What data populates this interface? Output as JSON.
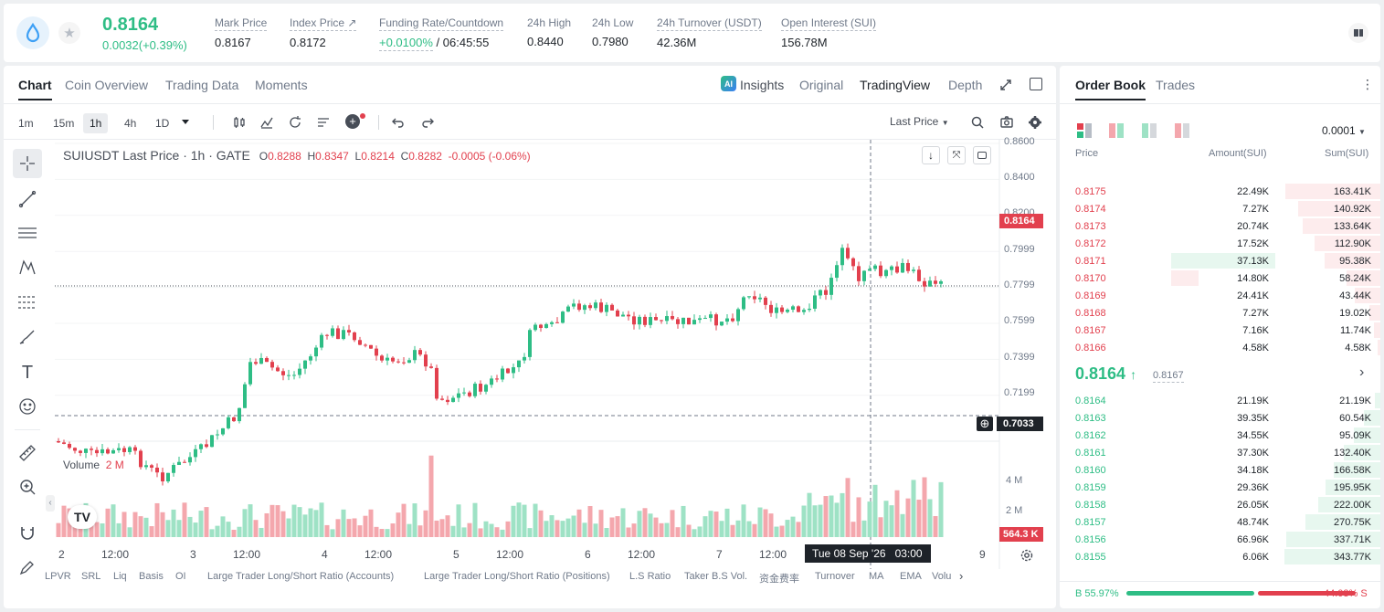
{
  "header": {
    "price": "0.8164",
    "change": "0.0032(+0.39%)",
    "stats": [
      {
        "label": "Mark Price",
        "value": "0.8167"
      },
      {
        "label": "Index Price ↗",
        "value": "0.8172"
      },
      {
        "label": "Funding Rate/Countdown",
        "value": "+0.0100%",
        "value2": "/ 06:45:55"
      },
      {
        "label": "24h High",
        "value": "0.8440"
      },
      {
        "label": "24h Low",
        "value": "0.7980"
      },
      {
        "label": "24h Turnover (USDT)",
        "value": "42.36M"
      },
      {
        "label": "Open Interest (SUI)",
        "value": "156.78M"
      }
    ]
  },
  "chart": {
    "tabs": [
      "Chart",
      "Coin Overview",
      "Trading Data",
      "Moments"
    ],
    "views": [
      "Insights",
      "Original",
      "TradingView",
      "Depth"
    ],
    "timeframes": [
      "1m",
      "15m",
      "1h",
      "4h",
      "1D"
    ],
    "price_type": "Last Price",
    "legend": {
      "symbol": "SUIUSDT Last Price · 1h · GATE",
      "o": "0.8288",
      "h": "0.8347",
      "l": "0.8214",
      "c": "0.8282",
      "chg": "-0.0005 (-0.06%)"
    },
    "price_axis": [
      "0.8600",
      "0.8400",
      "0.8200",
      "0.7999",
      "0.7799",
      "0.7599",
      "0.7399",
      "0.7199"
    ],
    "last_tag": "0.8164",
    "cross_tag": "0.7033",
    "volume_label": "Volume",
    "volume_value": "2 M",
    "vol_axis": [
      "4 M",
      "2 M"
    ],
    "vol_tag": "564.3 K",
    "time_axis": [
      "2",
      "12:00",
      "3",
      "12:00",
      "4",
      "12:00",
      "5",
      "12:00",
      "6",
      "12:00",
      "7",
      "12:00",
      "9"
    ],
    "time_tag": "Tue 08 Sep '26   03:00",
    "indicators": [
      "LPVR",
      "SRL",
      "Liq",
      "Basis",
      "OI",
      "Large Trader Long/Short Ratio (Accounts)",
      "Large Trader Long/Short Ratio (Positions)",
      "L.S Ratio",
      "Taker B.S Vol.",
      "资金费率",
      "Turnover",
      "MA",
      "EMA",
      "Volu"
    ]
  },
  "orderbook": {
    "tabs": [
      "Order Book",
      "Trades"
    ],
    "precision": "0.0001",
    "cols": [
      "Price",
      "Amount(SUI)",
      "Sum(SUI)"
    ],
    "asks": [
      {
        "p": "0.8175",
        "a": "22.49K",
        "s": "163.41K"
      },
      {
        "p": "0.8174",
        "a": "7.27K",
        "s": "140.92K"
      },
      {
        "p": "0.8173",
        "a": "20.74K",
        "s": "133.64K"
      },
      {
        "p": "0.8172",
        "a": "17.52K",
        "s": "112.90K"
      },
      {
        "p": "0.8171",
        "a": "37.13K",
        "s": "95.38K"
      },
      {
        "p": "0.8170",
        "a": "14.80K",
        "s": "58.24K"
      },
      {
        "p": "0.8169",
        "a": "24.41K",
        "s": "43.44K"
      },
      {
        "p": "0.8168",
        "a": "7.27K",
        "s": "19.02K"
      },
      {
        "p": "0.8167",
        "a": "7.16K",
        "s": "11.74K"
      },
      {
        "p": "0.8166",
        "a": "4.58K",
        "s": "4.58K"
      }
    ],
    "mid": "0.8164",
    "mark": "0.8167",
    "bids": [
      {
        "p": "0.8164",
        "a": "21.19K",
        "s": "21.19K"
      },
      {
        "p": "0.8163",
        "a": "39.35K",
        "s": "60.54K"
      },
      {
        "p": "0.8162",
        "a": "34.55K",
        "s": "95.09K"
      },
      {
        "p": "0.8161",
        "a": "37.30K",
        "s": "132.40K"
      },
      {
        "p": "0.8160",
        "a": "34.18K",
        "s": "166.58K"
      },
      {
        "p": "0.8159",
        "a": "29.36K",
        "s": "195.95K"
      },
      {
        "p": "0.8158",
        "a": "26.05K",
        "s": "222.00K"
      },
      {
        "p": "0.8157",
        "a": "48.74K",
        "s": "270.75K"
      },
      {
        "p": "0.8156",
        "a": "66.96K",
        "s": "337.71K"
      },
      {
        "p": "0.8155",
        "a": "6.06K",
        "s": "343.77K"
      }
    ],
    "buy": "B 55.97%",
    "sell": "44.03% S",
    "buy_ratio": 0.5597
  }
}
